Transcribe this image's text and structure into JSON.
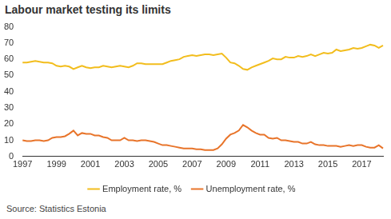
{
  "chart_data": {
    "type": "line",
    "title": "Labour market testing its limits",
    "source": "Source: Statistics Estonia",
    "categories": [
      "1997",
      null,
      null,
      null,
      null,
      null,
      null,
      null,
      "1999",
      null,
      null,
      null,
      null,
      null,
      null,
      null,
      "2001",
      null,
      null,
      null,
      null,
      null,
      null,
      null,
      "2003",
      null,
      null,
      null,
      null,
      null,
      null,
      null,
      "2005",
      null,
      null,
      null,
      null,
      null,
      null,
      null,
      "2007",
      null,
      null,
      null,
      null,
      null,
      null,
      null,
      "2009",
      null,
      null,
      null,
      null,
      null,
      null,
      null,
      "2011",
      null,
      null,
      null,
      null,
      null,
      null,
      null,
      "2013",
      null,
      null,
      null,
      null,
      null,
      null,
      null,
      "2015",
      null,
      null,
      null,
      null,
      null,
      null,
      null,
      "2017",
      null,
      null,
      null,
      null,
      null
    ],
    "series": [
      {
        "name": "Employment rate, %",
        "color": "#f2bd1d",
        "values": [
          58,
          58,
          58.5,
          59,
          58.5,
          58,
          58,
          57.5,
          56,
          55.5,
          56,
          55.5,
          54,
          55,
          56,
          55,
          54.5,
          55,
          55,
          56,
          55.5,
          55,
          55.5,
          56,
          55.5,
          55,
          56,
          57.5,
          57.5,
          57,
          57,
          57,
          57,
          57,
          58,
          59,
          59.5,
          60,
          61.5,
          62,
          62.5,
          62,
          62.5,
          63,
          63,
          62.5,
          63,
          63.5,
          61,
          58,
          57.5,
          56,
          54,
          53.5,
          55,
          56,
          57,
          58,
          59,
          60.5,
          60,
          60,
          61.5,
          61,
          61,
          62,
          61.5,
          62,
          63,
          62,
          63,
          64,
          63.5,
          64,
          66,
          65,
          65.5,
          66,
          67,
          66.5,
          67,
          68,
          69,
          68.5,
          67,
          68.5
        ]
      },
      {
        "name": "Unemployment rate, %",
        "color": "#e8742a",
        "values": [
          10,
          9.5,
          9.5,
          10,
          10,
          9.5,
          10,
          11.5,
          12,
          12,
          12.5,
          14,
          16,
          13,
          14.5,
          14,
          14,
          13,
          13,
          12,
          11.5,
          10,
          10,
          10,
          11.5,
          10,
          10,
          9.5,
          10,
          10,
          9.5,
          9,
          8,
          7,
          7,
          6.5,
          6,
          5.5,
          5,
          5,
          5,
          4.5,
          4.5,
          4,
          4,
          4,
          5,
          7.5,
          11,
          13.5,
          14.5,
          16,
          19.5,
          18,
          16,
          14.5,
          13.5,
          13.5,
          11.5,
          11,
          11.5,
          10,
          10,
          9.5,
          9,
          9,
          8,
          8,
          9,
          7.5,
          7,
          7,
          6.5,
          6.5,
          6.5,
          6,
          6.5,
          7,
          6.5,
          7,
          7,
          6,
          5.5,
          5.5,
          7,
          5
        ]
      }
    ],
    "ylim": [
      0,
      80
    ],
    "yticks": [
      0,
      10,
      20,
      30,
      40,
      50,
      60,
      70,
      80
    ],
    "grid": false,
    "legend": "bottom"
  }
}
